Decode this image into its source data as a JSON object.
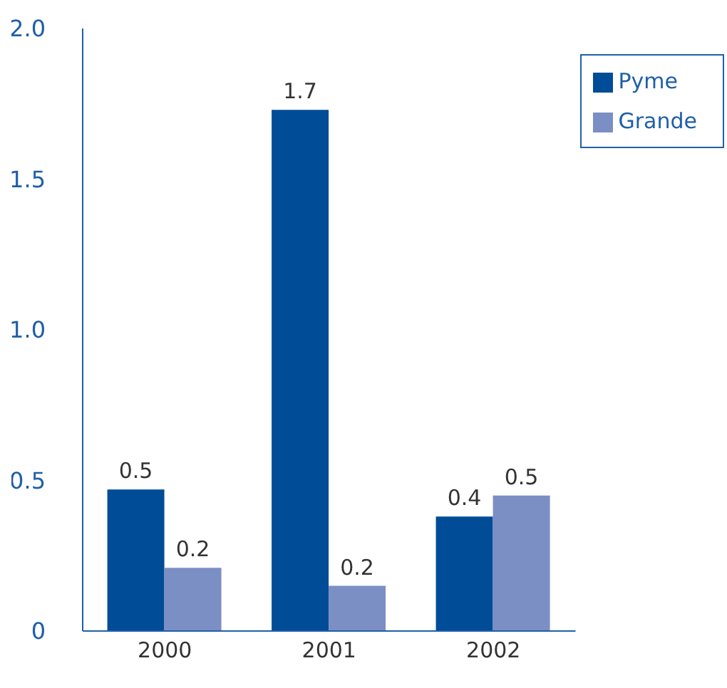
{
  "chart_data": {
    "type": "bar",
    "categories": [
      "2000",
      "2001",
      "2002"
    ],
    "series": [
      {
        "name": "Pyme",
        "color": "#004c97",
        "values": [
          0.47,
          1.73,
          0.38
        ],
        "value_labels": [
          "0.5",
          "1.7",
          "0.4"
        ]
      },
      {
        "name": "Grande",
        "color": "#7b8fc4",
        "values": [
          0.21,
          0.15,
          0.45
        ],
        "value_labels": [
          "0.2",
          "0.2",
          "0.5"
        ]
      }
    ],
    "ylim": [
      0,
      2
    ],
    "yticks": [
      0,
      {
        "value": 0.5,
        "label": "0.5"
      },
      {
        "value": 1,
        "label": "1.0"
      },
      {
        "value": 1.5,
        "label": "1.5"
      },
      {
        "value": 2,
        "label": "2.0"
      }
    ],
    "grid": false,
    "legend": "top right"
  }
}
